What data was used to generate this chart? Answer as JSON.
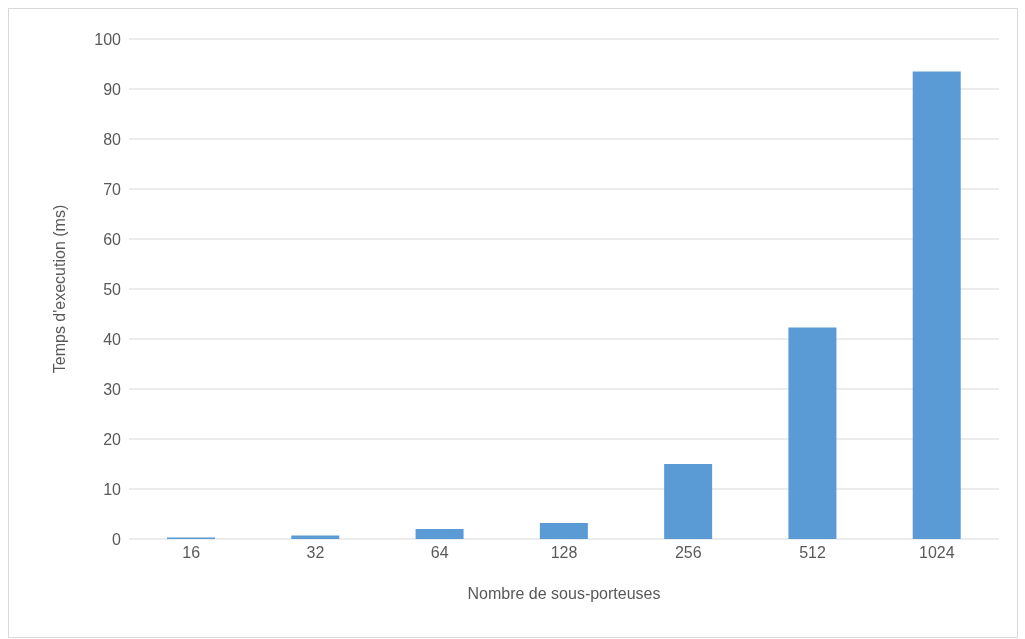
{
  "chart_data": {
    "type": "bar",
    "xlabel": "Nombre de sous-porteuses",
    "ylabel": "Temps d'execution (ms)",
    "categories": [
      "16",
      "32",
      "64",
      "128",
      "256",
      "512",
      "1024"
    ],
    "values": [
      0.3,
      0.7,
      2.0,
      3.2,
      15.0,
      42.3,
      93.5
    ],
    "color": "#5b9bd5",
    "ylim": [
      0,
      100
    ],
    "yticks": [
      0,
      10,
      20,
      30,
      40,
      50,
      60,
      70,
      80,
      90,
      100
    ],
    "grid": "y"
  }
}
